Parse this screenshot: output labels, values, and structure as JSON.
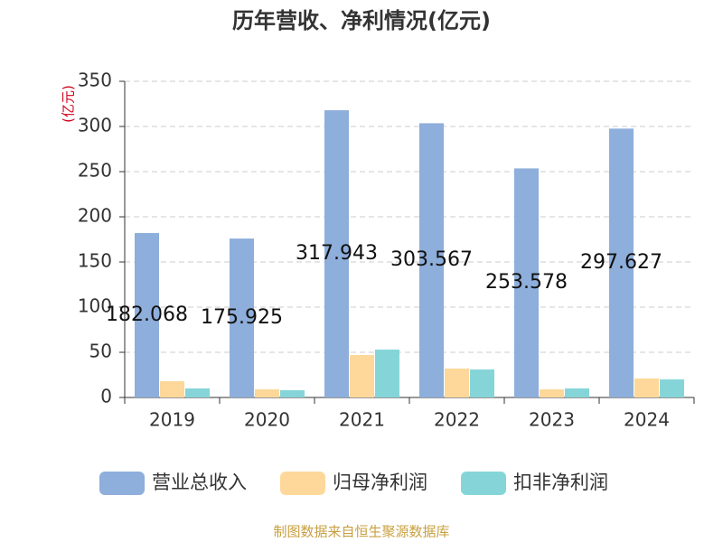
{
  "chart_data": {
    "type": "bar",
    "title": "历年营收、净利情况(亿元)",
    "y_label": "(亿元)",
    "categories": [
      "2019",
      "2020",
      "2021",
      "2022",
      "2023",
      "2024"
    ],
    "series": [
      {
        "name": "营业总收入",
        "color": "#8eaedb",
        "values": [
          182.068,
          175.925,
          317.943,
          303.567,
          253.578,
          297.627
        ]
      },
      {
        "name": "归母净利润",
        "color": "#fdd89a",
        "values": [
          18,
          9,
          47,
          32,
          9,
          21
        ]
      },
      {
        "name": "扣非净利润",
        "color": "#85d5d8",
        "values": [
          10,
          8,
          53,
          31,
          10,
          20
        ]
      }
    ],
    "ylim": [
      0,
      350
    ],
    "yticks": [
      0,
      50,
      100,
      150,
      200,
      250,
      300,
      350
    ],
    "grid": true,
    "source": "制图数据来自恒生聚源数据库"
  }
}
